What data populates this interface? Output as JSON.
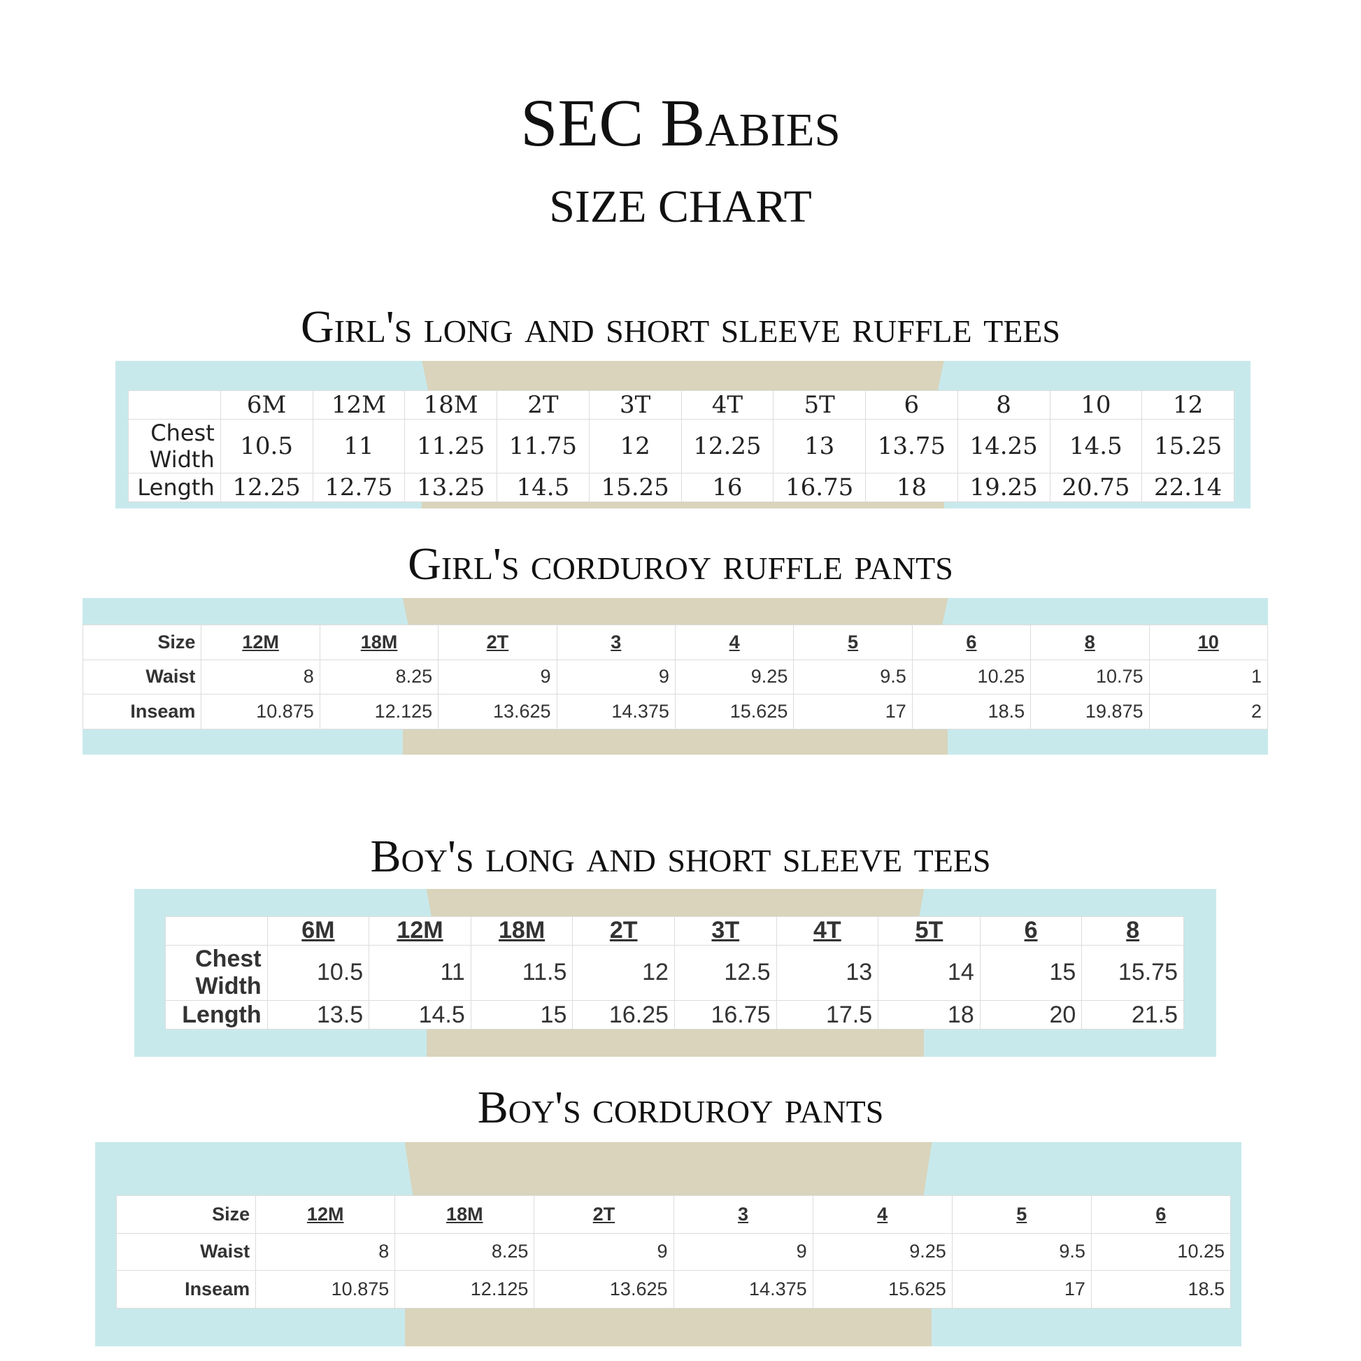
{
  "title": "SEC Babies",
  "subtitle": "SIZE CHART",
  "colors": {
    "panel_blue": "#c8e9ec",
    "panel_tan": "#d9d4bb"
  },
  "tables": [
    {
      "heading": "Girl's long and short sleeve ruffle tees",
      "header_label": "",
      "sizes": [
        "6M",
        "12M",
        "18M",
        "2T",
        "3T",
        "4T",
        "5T",
        "6",
        "8",
        "10",
        "12"
      ],
      "rows": [
        {
          "label": "Chest Width",
          "values": [
            "10.5",
            "11",
            "11.25",
            "11.75",
            "12",
            "12.25",
            "13",
            "13.75",
            "14.25",
            "14.5",
            "15.25"
          ]
        },
        {
          "label": "Length",
          "values": [
            "12.25",
            "12.75",
            "13.25",
            "14.5",
            "15.25",
            "16",
            "16.75",
            "18",
            "19.25",
            "20.75",
            "22.14"
          ]
        }
      ]
    },
    {
      "heading": "Girl's corduroy ruffle pants",
      "header_label": "Size",
      "sizes": [
        "12M",
        "18M",
        "2T",
        "3",
        "4",
        "5",
        "6",
        "8",
        "10"
      ],
      "rows": [
        {
          "label": "Waist",
          "values": [
            "8",
            "8.25",
            "9",
            "9",
            "9.25",
            "9.5",
            "10.25",
            "10.75",
            "1"
          ]
        },
        {
          "label": "Inseam",
          "values": [
            "10.875",
            "12.125",
            "13.625",
            "14.375",
            "15.625",
            "17",
            "18.5",
            "19.875",
            "2"
          ]
        }
      ]
    },
    {
      "heading": "Boy's long and short sleeve tees",
      "header_label": "",
      "sizes": [
        "6M",
        "12M",
        "18M",
        "2T",
        "3T",
        "4T",
        "5T",
        "6",
        "8"
      ],
      "rows": [
        {
          "label": "Chest Width",
          "values": [
            "10.5",
            "11",
            "11.5",
            "12",
            "12.5",
            "13",
            "14",
            "15",
            "15.75"
          ]
        },
        {
          "label": "Length",
          "values": [
            "13.5",
            "14.5",
            "15",
            "16.25",
            "16.75",
            "17.5",
            "18",
            "20",
            "21.5"
          ]
        }
      ]
    },
    {
      "heading": "Boy's corduroy pants",
      "header_label": "Size",
      "sizes": [
        "12M",
        "18M",
        "2T",
        "3",
        "4",
        "5",
        "6"
      ],
      "rows": [
        {
          "label": "Waist",
          "values": [
            "8",
            "8.25",
            "9",
            "9",
            "9.25",
            "9.5",
            "10.25"
          ]
        },
        {
          "label": "Inseam",
          "values": [
            "10.875",
            "12.125",
            "13.625",
            "14.375",
            "15.625",
            "17",
            "18.5"
          ]
        }
      ]
    }
  ]
}
